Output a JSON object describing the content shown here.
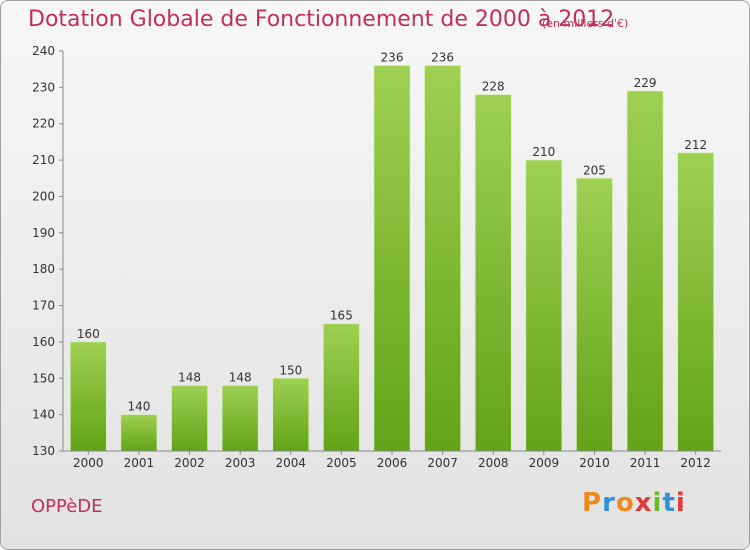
{
  "header": {
    "title": "Dotation Globale de Fonctionnement de 2000 à 2012",
    "subtitle": "(en milliers d'€)"
  },
  "footer": {
    "commune": "OPPèDE",
    "logo_text": "Proxiti",
    "logo_colors": [
      "#f08a1c",
      "#2f8fd8",
      "#f08a1c",
      "#e03a3a",
      "#6bb81f",
      "#2f8fd8",
      "#e03a3a"
    ]
  },
  "chart_data": {
    "type": "bar",
    "categories": [
      "2000",
      "2001",
      "2002",
      "2003",
      "2004",
      "2005",
      "2006",
      "2007",
      "2008",
      "2009",
      "2010",
      "2011",
      "2012"
    ],
    "values": [
      160,
      140,
      148,
      148,
      150,
      165,
      236,
      236,
      228,
      210,
      205,
      229,
      212
    ],
    "title": "Dotation Globale de Fonctionnement de 2000 à 2012",
    "subtitle": "(en milliers d'€)",
    "ylim": [
      130,
      240
    ],
    "yticks": [
      130,
      140,
      150,
      160,
      170,
      180,
      190,
      200,
      210,
      220,
      230,
      240
    ],
    "grid": false,
    "colors": {
      "bar_light": "#9fd052",
      "bar_dark": "#62a318",
      "axis": "#888888"
    }
  }
}
